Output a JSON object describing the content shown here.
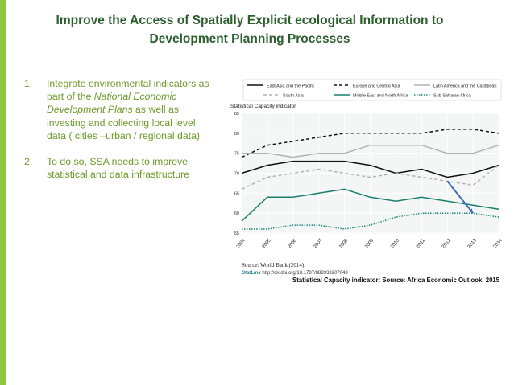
{
  "slide": {
    "title_line1": "Improve the Access of Spatially Explicit ecological Information to",
    "title_line2": "Development Planning Processes",
    "items": [
      {
        "number": "1.",
        "text_before": "Integrate environmental indicators as part of the ",
        "text_italic": "National Economic Development Plans",
        "text_after": " as well as investing and collecting local level data ( cities –urban / regional data)"
      },
      {
        "number": "2.",
        "text": "To do so, SSA needs to improve statistical and data infrastructure"
      }
    ],
    "source": "Source: World Bank (2014).",
    "statlink_label": "StatLink",
    "statlink_url": "http://dx.doi.org/10.1787/888933207043",
    "footnote": "Statistical Capacity indicator: Source: Africa Economic Outlook, 2015"
  },
  "colors": {
    "accent_bar": "#8dc63f",
    "title": "#2c5e2e",
    "list_text": "#6e9a2a",
    "teal_dark": "#1a7f6e",
    "teal_dotted": "#1a8a7a",
    "grey": "#b3b3b3",
    "black": "#111111",
    "arrow": "#3d6db3"
  },
  "chart_data": {
    "type": "line",
    "title": "Statistical Capacity indicator",
    "x": [
      "2004",
      "2005",
      "2006",
      "2007",
      "2008",
      "2009",
      "2010",
      "2011",
      "2012",
      "2013",
      "2014"
    ],
    "ylim": [
      55,
      85
    ],
    "yticks": [
      55,
      60,
      65,
      70,
      75,
      80,
      85
    ],
    "grid": true,
    "series": [
      {
        "name": "East Asia and the Pacific",
        "style": "solid",
        "color": "#111111",
        "values": [
          70,
          72,
          73,
          73,
          73,
          72,
          70,
          71,
          69,
          70,
          72
        ]
      },
      {
        "name": "Europe and Central Asia",
        "style": "dashed",
        "color": "#111111",
        "values": [
          74,
          77,
          78,
          79,
          80,
          80,
          80,
          80,
          81,
          81,
          80
        ]
      },
      {
        "name": "Latin America and the Caribbean",
        "style": "solid",
        "color": "#b3b3b3",
        "values": [
          75,
          75,
          74,
          75,
          75,
          77,
          77,
          77,
          75,
          75,
          77
        ]
      },
      {
        "name": "South Asia",
        "style": "dashed",
        "color": "#b3b3b3",
        "values": [
          66,
          69,
          70,
          71,
          70,
          69,
          70,
          69,
          68,
          67,
          72
        ]
      },
      {
        "name": "Middle East and North Africa",
        "style": "solid",
        "color": "#1a7f6e",
        "values": [
          58,
          64,
          64,
          65,
          66,
          64,
          63,
          64,
          63,
          62,
          61
        ]
      },
      {
        "name": "Sub-Saharan Africa",
        "style": "dotted",
        "color": "#1a8a7a",
        "values": [
          56,
          56,
          57,
          57,
          56,
          57,
          59,
          60,
          60,
          60,
          59
        ]
      }
    ],
    "legend_position": "top",
    "annotations": [
      {
        "type": "arrow",
        "from_x": "2012",
        "from_y": 68,
        "to_x": "2013",
        "to_y": 60
      }
    ]
  }
}
